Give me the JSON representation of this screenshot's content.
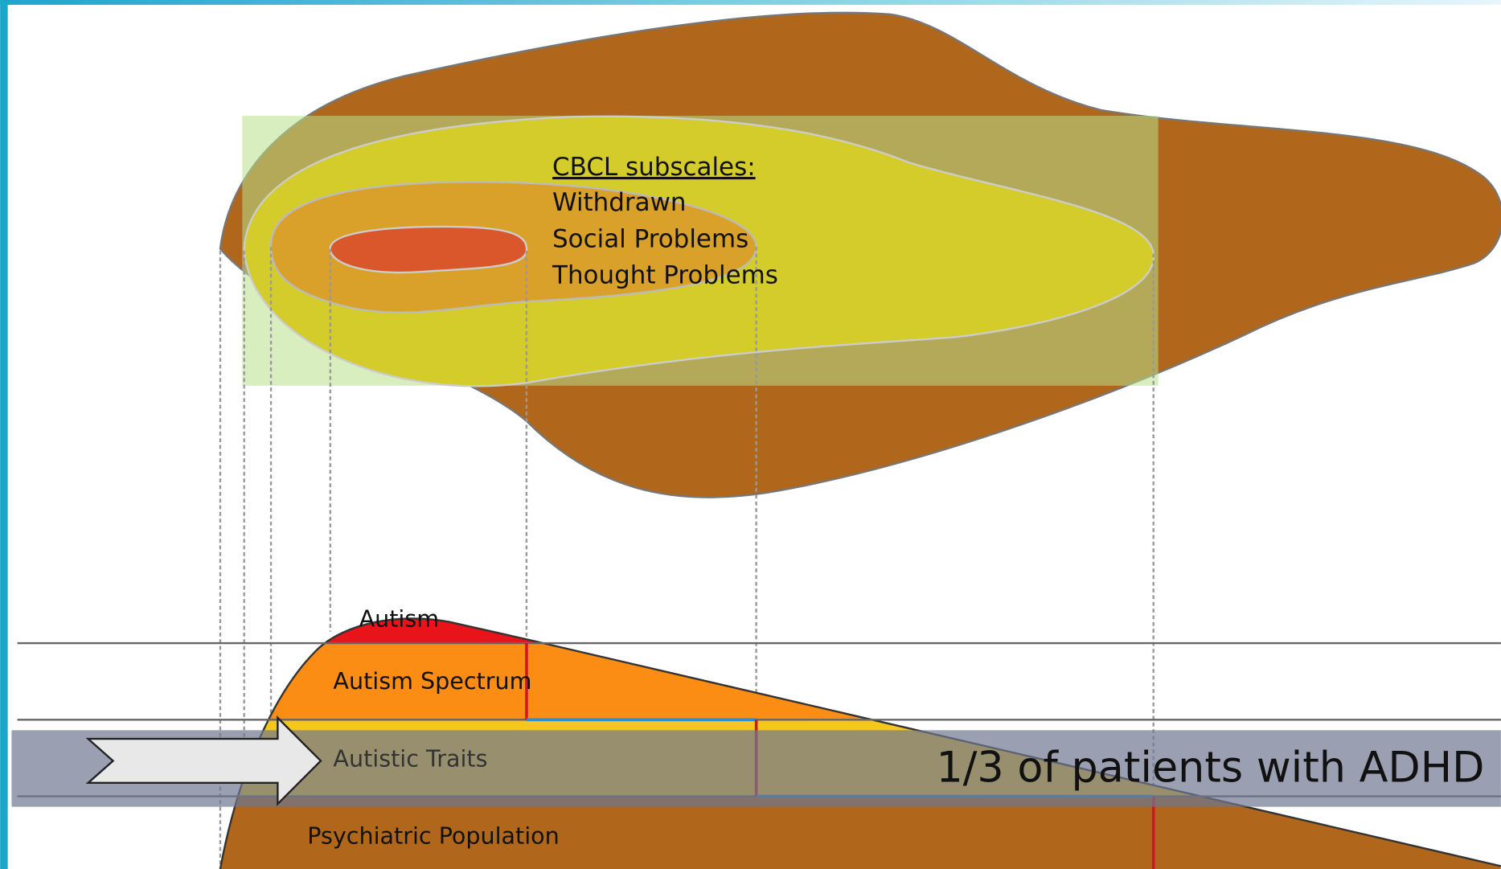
{
  "cbcl": {
    "heading": "CBCL subscales:",
    "items": [
      "Withdrawn",
      "Social Problems",
      "Thought Problems"
    ]
  },
  "layers": [
    "Autism",
    "Autism Spectrum",
    "Autistic Traits",
    "Psychiatric Population"
  ],
  "callout": "1/3 of patients with ADHD"
}
